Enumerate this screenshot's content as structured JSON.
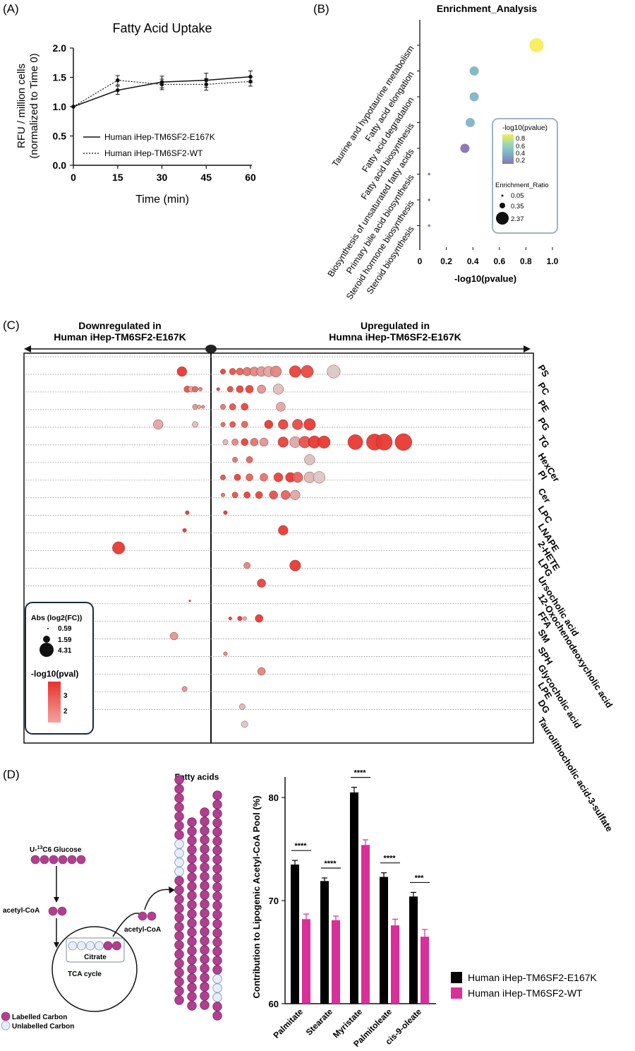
{
  "colors": {
    "axis": "#111111",
    "bubble_high": "#e8322a",
    "bubble_low": "#d9d9d9",
    "purple": "#b0408f",
    "pink": "#d92f9a",
    "black": "#000000",
    "gridline": "#999999",
    "legend_border": "#9fb3c8"
  },
  "panel_labels": {
    "a": "(A)",
    "b": "(B)",
    "c": "(C)",
    "d": "(D)"
  },
  "panel_c": {
    "down_label_1": "Downregulated in",
    "down_label_2": "Human iHep-TM6SF2-E167K",
    "up_label_1": "Upregulated in",
    "up_label_2": "Humna iHep-TM6SF2-E167K",
    "size_legend_title": "Abs (log2(FC))",
    "color_legend_title": "-log10(pval)",
    "color_ticks": [
      "3",
      "2"
    ]
  },
  "panel_d": {
    "fatty_acids_title": "Fatty acids",
    "glucose_label_prefix": "U-",
    "glucose_label_sup": "13",
    "glucose_label_suffix": "C6 Glucose",
    "acetyl_coa_1": "acetyl-CoA",
    "acetyl_coa_2": "acetyl-CoA",
    "citrate": "Citrate",
    "tca": "TCA cycle",
    "legend_labelled": "Labelled Carbon",
    "legend_unlabelled": "Unlabelled Carbon"
  },
  "chart_data": [
    {
      "type": "line",
      "title": "Fatty Acid Uptake",
      "xlabel": "Time (min)",
      "ylabel_1": "RFU / million cells",
      "ylabel_2": "(normalized to Time 0)",
      "x": [
        0,
        15,
        30,
        45,
        60
      ],
      "xlim": [
        0,
        60
      ],
      "ylim": [
        0.0,
        2.0
      ],
      "yticks": [
        "0.0",
        "0.5",
        "1.0",
        "1.5",
        "2.0"
      ],
      "xticks": [
        "0",
        "15",
        "30",
        "45",
        "60"
      ],
      "series": [
        {
          "name": "Human iHep-TM6SF2-E167K",
          "style": "solid",
          "values": [
            1.0,
            1.28,
            1.42,
            1.45,
            1.51
          ],
          "err": [
            0,
            0.07,
            0.1,
            0.12,
            0.1
          ]
        },
        {
          "name": "Human iHep-TM6SF2-WT",
          "style": "dotted",
          "values": [
            1.0,
            1.45,
            1.38,
            1.38,
            1.43
          ],
          "err": [
            0,
            0.08,
            0.09,
            0.1,
            0.08
          ]
        }
      ],
      "legend": "bottom-right"
    },
    {
      "type": "scatter",
      "title": "Enrichment_Analysis",
      "xlabel": "-log10(pvalue)",
      "xlim": [
        0,
        1.0
      ],
      "xticks": [
        "0",
        "0.2",
        "0.4",
        "0.6",
        "0.8",
        "1.0"
      ],
      "categories": [
        "Taurine and hypotaurine metabolism",
        "Fatty acid elongation",
        "Fatty acid degradation",
        "Fatty acid biosynthesis",
        "Biosynthesis of unsaturated fatty acids",
        "Primary bile acid biosynthesis",
        "Steroid hormone biosynthesis",
        "Steroid biosynthesis"
      ],
      "x": [
        0.88,
        0.41,
        0.41,
        0.38,
        0.34,
        0.07,
        0.07,
        0.07
      ],
      "enrichment_ratio": [
        2.37,
        0.45,
        0.45,
        0.42,
        0.4,
        0.05,
        0.05,
        0.05
      ],
      "color_legend_title": "-log10(pvalue)",
      "color_ticks": [
        "0.8",
        "0.6",
        "0.4",
        "0.2"
      ],
      "size_legend_title": "Enrichment_Ratio",
      "size_ticks": [
        "0.05",
        "0.35",
        "2.37"
      ]
    },
    {
      "type": "scatter",
      "categories": [
        "PS",
        "PC",
        "PE",
        "PG",
        "TG",
        "HexCer",
        "PI",
        "Cer",
        "LPC",
        "LNAPE",
        "2-HETE",
        "LPG",
        "Ursocholic acid",
        "12-Oxochenodeoxycholic acid",
        "FFA",
        "SM",
        "SPH",
        "Glycocholic acid",
        "LPE",
        "DG",
        "Taurolithocholic acid-3-sulfate"
      ],
      "size_legend": [
        "0.59",
        "1.59",
        "4.31"
      ],
      "color_legend": [
        "3",
        "2"
      ],
      "points": [
        {
          "row": 0,
          "x": -1.1,
          "s": 1.5,
          "c": 0.95
        },
        {
          "row": 0,
          "x": 0.5,
          "s": 0.8,
          "c": 0.9
        },
        {
          "row": 0,
          "x": 0.9,
          "s": 1.0,
          "c": 0.8
        },
        {
          "row": 0,
          "x": 1.2,
          "s": 1.1,
          "c": 0.7
        },
        {
          "row": 0,
          "x": 1.5,
          "s": 1.3,
          "c": 0.6
        },
        {
          "row": 0,
          "x": 1.8,
          "s": 1.4,
          "c": 0.5
        },
        {
          "row": 0,
          "x": 2.1,
          "s": 1.5,
          "c": 0.4
        },
        {
          "row": 0,
          "x": 2.4,
          "s": 1.6,
          "c": 0.3
        },
        {
          "row": 0,
          "x": 2.7,
          "s": 1.7,
          "c": 0.5
        },
        {
          "row": 0,
          "x": 3.5,
          "s": 1.8,
          "c": 0.9
        },
        {
          "row": 0,
          "x": 4.0,
          "s": 1.9,
          "c": 0.85
        },
        {
          "row": 0,
          "x": 5.1,
          "s": 2.0,
          "c": 0.1
        },
        {
          "row": 1,
          "x": -0.9,
          "s": 1.0,
          "c": 0.8
        },
        {
          "row": 1,
          "x": -0.75,
          "s": 0.9,
          "c": 0.3
        },
        {
          "row": 1,
          "x": -0.6,
          "s": 0.9,
          "c": 0.7
        },
        {
          "row": 1,
          "x": -0.4,
          "s": 0.6,
          "c": 0.5
        },
        {
          "row": 1,
          "x": 0.3,
          "s": 0.5,
          "c": 0.9
        },
        {
          "row": 1,
          "x": 0.8,
          "s": 0.9,
          "c": 0.85
        },
        {
          "row": 1,
          "x": 1.2,
          "s": 1.1,
          "c": 0.9
        },
        {
          "row": 1,
          "x": 1.6,
          "s": 1.2,
          "c": 0.9
        },
        {
          "row": 1,
          "x": 2.1,
          "s": 1.3,
          "c": 0.4
        },
        {
          "row": 1,
          "x": 2.8,
          "s": 1.6,
          "c": 0.15
        },
        {
          "row": 2,
          "x": -0.6,
          "s": 0.8,
          "c": 0.4
        },
        {
          "row": 2,
          "x": -0.45,
          "s": 0.6,
          "c": 0.3
        },
        {
          "row": 2,
          "x": -0.3,
          "s": 0.5,
          "c": 0.5
        },
        {
          "row": 2,
          "x": 0.5,
          "s": 0.8,
          "c": 0.6
        },
        {
          "row": 2,
          "x": 0.9,
          "s": 1.0,
          "c": 0.8
        },
        {
          "row": 2,
          "x": 1.4,
          "s": 1.1,
          "c": 0.9
        },
        {
          "row": 2,
          "x": 2.9,
          "s": 1.4,
          "c": 0.3
        },
        {
          "row": 3,
          "x": -2.0,
          "s": 1.5,
          "c": 0.3
        },
        {
          "row": 3,
          "x": -0.6,
          "s": 0.9,
          "c": 0.15
        },
        {
          "row": 3,
          "x": 0.5,
          "s": 0.7,
          "c": 0.7
        },
        {
          "row": 3,
          "x": 0.9,
          "s": 0.9,
          "c": 0.8
        },
        {
          "row": 3,
          "x": 1.4,
          "s": 1.0,
          "c": 0.7
        },
        {
          "row": 3,
          "x": 2.4,
          "s": 1.3,
          "c": 0.95
        },
        {
          "row": 3,
          "x": 3.0,
          "s": 1.5,
          "c": 0.9
        },
        {
          "row": 3,
          "x": 3.6,
          "s": 1.6,
          "c": 0.85
        },
        {
          "row": 3,
          "x": 4.1,
          "s": 1.8,
          "c": 0.95
        },
        {
          "row": 4,
          "x": 0.6,
          "s": 0.8,
          "c": 0.2
        },
        {
          "row": 4,
          "x": 1.0,
          "s": 1.0,
          "c": 0.5
        },
        {
          "row": 4,
          "x": 1.4,
          "s": 1.1,
          "c": 0.9
        },
        {
          "row": 4,
          "x": 1.8,
          "s": 1.2,
          "c": 0.6
        },
        {
          "row": 4,
          "x": 2.2,
          "s": 1.3,
          "c": 0.4
        },
        {
          "row": 4,
          "x": 3.0,
          "s": 1.6,
          "c": 0.9
        },
        {
          "row": 4,
          "x": 3.5,
          "s": 1.7,
          "c": 0.3
        },
        {
          "row": 4,
          "x": 3.9,
          "s": 1.8,
          "c": 0.8
        },
        {
          "row": 4,
          "x": 4.3,
          "s": 1.9,
          "c": 0.95
        },
        {
          "row": 4,
          "x": 4.7,
          "s": 1.9,
          "c": 0.95
        },
        {
          "row": 4,
          "x": 6.0,
          "s": 2.3,
          "c": 0.95
        },
        {
          "row": 4,
          "x": 6.8,
          "s": 2.5,
          "c": 0.95
        },
        {
          "row": 4,
          "x": 7.2,
          "s": 2.5,
          "c": 0.95
        },
        {
          "row": 4,
          "x": 8.0,
          "s": 2.6,
          "c": 0.95
        },
        {
          "row": 5,
          "x": 1.0,
          "s": 0.8,
          "c": 0.6
        },
        {
          "row": 5,
          "x": 1.6,
          "s": 1.0,
          "c": 0.7
        },
        {
          "row": 5,
          "x": 4.1,
          "s": 1.6,
          "c": 0.15
        },
        {
          "row": 6,
          "x": 0.5,
          "s": 0.8,
          "c": 0.8
        },
        {
          "row": 6,
          "x": 1.1,
          "s": 1.0,
          "c": 0.9
        },
        {
          "row": 6,
          "x": 1.6,
          "s": 1.1,
          "c": 0.7
        },
        {
          "row": 6,
          "x": 2.2,
          "s": 1.2,
          "c": 0.6
        },
        {
          "row": 6,
          "x": 2.8,
          "s": 1.4,
          "c": 0.9
        },
        {
          "row": 6,
          "x": 3.3,
          "s": 1.5,
          "c": 0.95
        },
        {
          "row": 6,
          "x": 3.6,
          "s": 1.6,
          "c": 0.7
        },
        {
          "row": 6,
          "x": 4.1,
          "s": 1.7,
          "c": 0.2
        },
        {
          "row": 6,
          "x": 4.5,
          "s": 1.8,
          "c": 0.1
        },
        {
          "row": 7,
          "x": 0.5,
          "s": 0.6,
          "c": 0.6
        },
        {
          "row": 7,
          "x": 1.0,
          "s": 0.9,
          "c": 0.8
        },
        {
          "row": 7,
          "x": 1.5,
          "s": 1.0,
          "c": 0.9
        },
        {
          "row": 7,
          "x": 2.0,
          "s": 1.1,
          "c": 0.9
        },
        {
          "row": 7,
          "x": 2.6,
          "s": 1.3,
          "c": 0.8
        },
        {
          "row": 7,
          "x": 3.1,
          "s": 1.4,
          "c": 0.7
        },
        {
          "row": 7,
          "x": 3.5,
          "s": 1.5,
          "c": 0.3
        },
        {
          "row": 8,
          "x": -0.9,
          "s": 0.6,
          "c": 0.95
        },
        {
          "row": 8,
          "x": 0.6,
          "s": 0.6,
          "c": 0.95
        },
        {
          "row": 9,
          "x": -1.0,
          "s": 0.6,
          "c": 0.95
        },
        {
          "row": 9,
          "x": 3.0,
          "s": 1.5,
          "c": 0.95
        },
        {
          "row": 10,
          "x": -3.5,
          "s": 1.9,
          "c": 0.95
        },
        {
          "row": 11,
          "x": 1.5,
          "s": 1.0,
          "c": 0.5
        },
        {
          "row": 11,
          "x": 3.5,
          "s": 1.7,
          "c": 0.95
        },
        {
          "row": 12,
          "x": 2.1,
          "s": 1.3,
          "c": 0.9
        },
        {
          "row": 13,
          "x": -0.8,
          "s": 0.3,
          "c": 0.9
        },
        {
          "row": 14,
          "x": 0.8,
          "s": 0.5,
          "c": 0.9
        },
        {
          "row": 14,
          "x": 1.2,
          "s": 0.7,
          "c": 0.95
        },
        {
          "row": 14,
          "x": 1.4,
          "s": 0.6,
          "c": 0.3
        },
        {
          "row": 14,
          "x": 2.0,
          "s": 1.2,
          "c": 0.95
        },
        {
          "row": 15,
          "x": -1.4,
          "s": 1.2,
          "c": 0.4
        },
        {
          "row": 16,
          "x": 0.6,
          "s": 0.6,
          "c": 0.5
        },
        {
          "row": 17,
          "x": 2.1,
          "s": 1.2,
          "c": 0.5
        },
        {
          "row": 18,
          "x": -1.0,
          "s": 0.8,
          "c": 0.4
        },
        {
          "row": 19,
          "x": 1.3,
          "s": 0.9,
          "c": 0.2
        },
        {
          "row": 20,
          "x": 1.4,
          "s": 1.0,
          "c": 0.1
        }
      ]
    },
    {
      "type": "bar",
      "ylabel": "Contribution to Lipogenic Acetyl-CoA Pool (%)",
      "ylim": [
        60,
        82
      ],
      "yticks": [
        "60",
        "70",
        "80"
      ],
      "categories": [
        "Palmitate",
        "Stearate",
        "Myristate",
        "Palmitoleate",
        "cis-9-oleate"
      ],
      "series": [
        {
          "name": "Human iHep-TM6SF2-E167K",
          "values": [
            73.5,
            71.9,
            80.5,
            72.3,
            70.4
          ],
          "err": [
            0.4,
            0.3,
            0.5,
            0.4,
            0.4
          ]
        },
        {
          "name": "Human iHep-TM6SF2-WT",
          "values": [
            68.2,
            68.1,
            75.4,
            67.6,
            66.5
          ],
          "err": [
            0.5,
            0.4,
            0.5,
            0.6,
            0.7
          ]
        }
      ],
      "significance": [
        "****",
        "****",
        "****",
        "****",
        "***"
      ],
      "legend": "bottom-right"
    }
  ]
}
